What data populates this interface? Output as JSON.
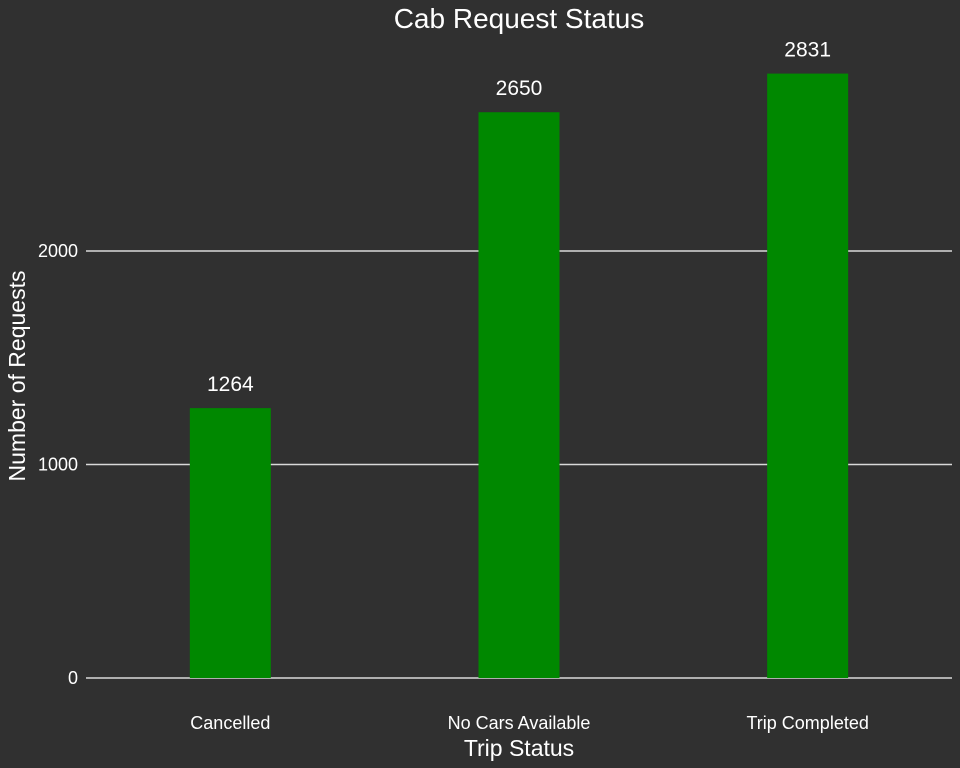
{
  "chart_data": {
    "type": "bar",
    "title": "Cab Request Status",
    "xlabel": "Trip Status",
    "ylabel": "Number of Requests",
    "categories": [
      "Cancelled",
      "No Cars Available",
      "Trip Completed"
    ],
    "values": [
      1264,
      2650,
      2831
    ],
    "data_labels": [
      "1264",
      "2650",
      "2831"
    ],
    "y_ticks": [
      0,
      1000,
      2000
    ],
    "y_tick_labels": [
      "0",
      "1000",
      "2000"
    ],
    "ylim": [
      0,
      2850
    ],
    "grid": "horizontal",
    "legend": "none"
  },
  "colors": {
    "background": "#303030",
    "bar": "#008800",
    "gridline": "#d9d9d9",
    "text": "#ffffff"
  }
}
